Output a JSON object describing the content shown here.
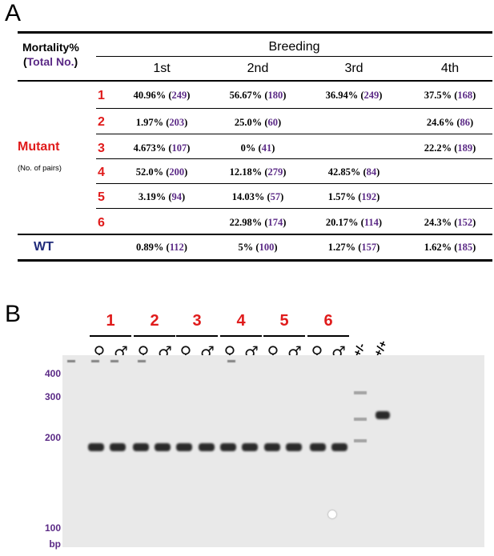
{
  "panelA": {
    "letter": "A",
    "corner_label_line1": "Mortality%",
    "corner_label_open": "(",
    "corner_label_total": "Total No.",
    "corner_label_close": ")",
    "group_header": "Breeding",
    "columns": [
      "1st",
      "2nd",
      "3rd",
      "4th"
    ],
    "mutant_label": "Mutant",
    "mutant_sub": "(No. of pairs)",
    "wt_label": "WT",
    "rows": [
      {
        "id": "1",
        "cells": [
          [
            "40.96% (",
            "249",
            ")"
          ],
          [
            "56.67% (",
            "180",
            ")"
          ],
          [
            "36.94% (",
            "249",
            ")"
          ],
          [
            "37.5% (",
            "168",
            ")"
          ]
        ]
      },
      {
        "id": "2",
        "cells": [
          [
            "1.97% (",
            "203",
            ")"
          ],
          [
            "25.0% (",
            "60",
            ")"
          ],
          [
            "",
            "",
            ""
          ],
          [
            "24.6% (",
            "86",
            ")"
          ]
        ]
      },
      {
        "id": "3",
        "cells": [
          [
            "4.673% (",
            "107",
            ")"
          ],
          [
            "0% (",
            "41",
            ")"
          ],
          [
            "",
            "",
            ""
          ],
          [
            "22.2% (",
            "189",
            ")"
          ]
        ]
      },
      {
        "id": "4",
        "cells": [
          [
            "52.0% (",
            "200",
            ")"
          ],
          [
            "12.18% (",
            "279",
            ")"
          ],
          [
            "42.85% (",
            "84",
            ")"
          ],
          [
            "",
            "",
            ""
          ]
        ]
      },
      {
        "id": "5",
        "cells": [
          [
            "3.19% (",
            "94",
            ")"
          ],
          [
            "14.03% (",
            "57",
            ")"
          ],
          [
            "1.57% (",
            "192",
            ")"
          ],
          [
            "",
            "",
            ""
          ]
        ]
      },
      {
        "id": "6",
        "cells": [
          [
            "",
            "",
            ""
          ],
          [
            "22.98% (",
            "174",
            ")"
          ],
          [
            "20.17% (",
            "114",
            ")"
          ],
          [
            "24.3% (",
            "152",
            ")"
          ]
        ]
      }
    ],
    "wt_cells": [
      [
        "0.89% (",
        "112",
        ")"
      ],
      [
        "5% (",
        "100",
        ")"
      ],
      [
        "1.27% (",
        "157",
        ")"
      ],
      [
        "1.62% (",
        "185",
        ")"
      ]
    ]
  },
  "panelB": {
    "letter": "B",
    "pairs": [
      "1",
      "2",
      "3",
      "4",
      "5",
      "6"
    ],
    "female_symbol": "♀",
    "male_symbol": "♂",
    "genotype_het": "+/-",
    "genotype_wt": "+/+",
    "ladder_labels": [
      "400",
      "300",
      "200",
      "100"
    ],
    "ladder_unit": "bp"
  },
  "colors": {
    "red": "#e01b1b",
    "purple": "#5b2a86",
    "navy": "#1f2a7a"
  }
}
